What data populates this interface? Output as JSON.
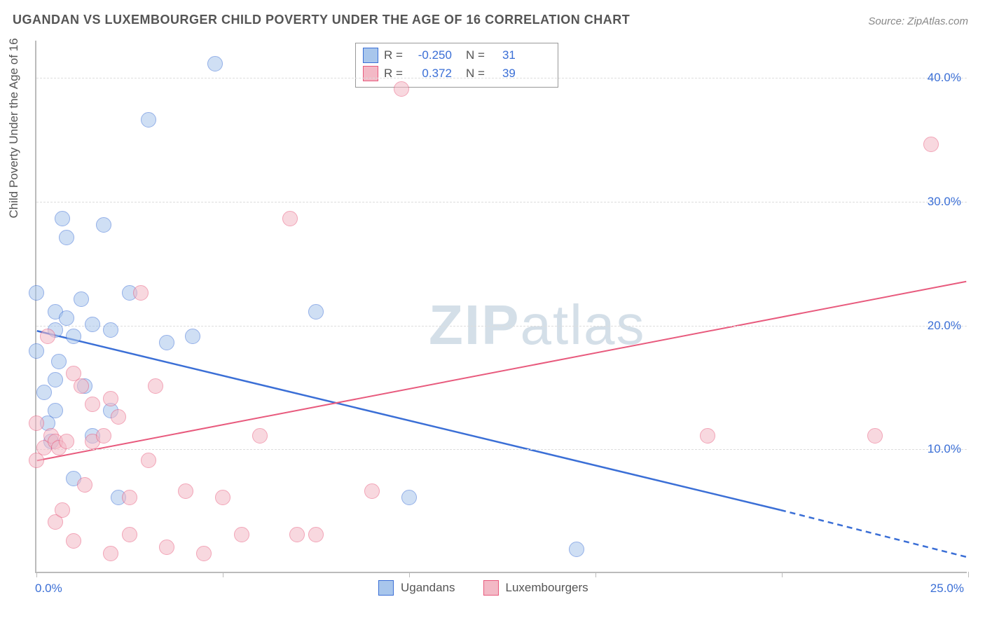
{
  "title": "UGANDAN VS LUXEMBOURGER CHILD POVERTY UNDER THE AGE OF 16 CORRELATION CHART",
  "source_prefix": "Source: ",
  "source_name": "ZipAtlas.com",
  "ylabel": "Child Poverty Under the Age of 16",
  "watermark": {
    "bold": "ZIP",
    "rest": "atlas"
  },
  "axes": {
    "xlim": [
      0,
      25
    ],
    "ylim": [
      0,
      43
    ],
    "xtick_positions": [
      0,
      5,
      10,
      15,
      20,
      25
    ],
    "xtick_labels_shown": {
      "left": "0.0%",
      "right": "25.0%"
    },
    "ytick_positions": [
      10,
      20,
      30,
      40
    ],
    "ytick_labels": [
      "10.0%",
      "20.0%",
      "30.0%",
      "40.0%"
    ],
    "grid_color": "#dddddd",
    "axis_color": "#bbbbbb",
    "tick_label_color": "#3b6fd6",
    "label_color": "#555555",
    "label_fontsize": 17
  },
  "series": [
    {
      "name": "Ugandans",
      "color_fill": "#a8c6ec",
      "color_stroke": "#3b6fd6",
      "fill_opacity": 0.55,
      "marker_radius": 11,
      "R_label": "R =",
      "R": "-0.250",
      "N_label": "N =",
      "N": "31",
      "trend": {
        "x1": 0,
        "y1": 19.5,
        "x2_solid": 20,
        "y2_solid": 5.0,
        "x2": 25,
        "y2": 1.2,
        "width": 2.5,
        "dash_from_x": 20
      },
      "points": [
        [
          0.0,
          22.5
        ],
        [
          0.0,
          17.8
        ],
        [
          0.2,
          14.5
        ],
        [
          0.3,
          12.0
        ],
        [
          0.4,
          10.5
        ],
        [
          0.5,
          21.0
        ],
        [
          0.5,
          19.5
        ],
        [
          0.5,
          15.5
        ],
        [
          0.5,
          13.0
        ],
        [
          0.6,
          17.0
        ],
        [
          0.7,
          28.5
        ],
        [
          0.8,
          20.5
        ],
        [
          0.8,
          27.0
        ],
        [
          1.0,
          19.0
        ],
        [
          1.0,
          7.5
        ],
        [
          1.2,
          22.0
        ],
        [
          1.3,
          15.0
        ],
        [
          1.5,
          20.0
        ],
        [
          1.5,
          11.0
        ],
        [
          1.8,
          28.0
        ],
        [
          2.0,
          19.5
        ],
        [
          2.0,
          13.0
        ],
        [
          2.2,
          6.0
        ],
        [
          2.5,
          22.5
        ],
        [
          3.0,
          36.5
        ],
        [
          3.5,
          18.5
        ],
        [
          4.2,
          19.0
        ],
        [
          4.8,
          41.0
        ],
        [
          7.5,
          21.0
        ],
        [
          10.0,
          6.0
        ],
        [
          14.5,
          1.8
        ]
      ]
    },
    {
      "name": "Luxembourgers",
      "color_fill": "#f3b9c6",
      "color_stroke": "#e85a7d",
      "fill_opacity": 0.55,
      "marker_radius": 11,
      "R_label": "R =",
      "R": "0.372",
      "N_label": "N =",
      "N": "39",
      "trend": {
        "x1": 0,
        "y1": 9.0,
        "x2_solid": 25,
        "y2_solid": 23.5,
        "x2": 25,
        "y2": 23.5,
        "width": 2,
        "dash_from_x": 25
      },
      "points": [
        [
          0.0,
          12.0
        ],
        [
          0.0,
          9.0
        ],
        [
          0.2,
          10.0
        ],
        [
          0.3,
          19.0
        ],
        [
          0.4,
          11.0
        ],
        [
          0.5,
          10.5
        ],
        [
          0.5,
          4.0
        ],
        [
          0.6,
          10.0
        ],
        [
          0.7,
          5.0
        ],
        [
          0.8,
          10.5
        ],
        [
          1.0,
          16.0
        ],
        [
          1.0,
          2.5
        ],
        [
          1.2,
          15.0
        ],
        [
          1.3,
          7.0
        ],
        [
          1.5,
          13.5
        ],
        [
          1.5,
          10.5
        ],
        [
          1.8,
          11.0
        ],
        [
          2.0,
          14.0
        ],
        [
          2.0,
          1.5
        ],
        [
          2.2,
          12.5
        ],
        [
          2.5,
          6.0
        ],
        [
          2.5,
          3.0
        ],
        [
          2.8,
          22.5
        ],
        [
          3.0,
          9.0
        ],
        [
          3.2,
          15.0
        ],
        [
          3.5,
          2.0
        ],
        [
          4.0,
          6.5
        ],
        [
          4.5,
          1.5
        ],
        [
          5.0,
          6.0
        ],
        [
          5.5,
          3.0
        ],
        [
          6.0,
          11.0
        ],
        [
          6.8,
          28.5
        ],
        [
          7.0,
          3.0
        ],
        [
          7.5,
          3.0
        ],
        [
          9.0,
          6.5
        ],
        [
          9.8,
          39.0
        ],
        [
          18.0,
          11.0
        ],
        [
          22.5,
          11.0
        ],
        [
          24.0,
          34.5
        ]
      ]
    }
  ],
  "legend_bottom": [
    "Ugandans",
    "Luxembourgers"
  ],
  "background_color": "#ffffff"
}
